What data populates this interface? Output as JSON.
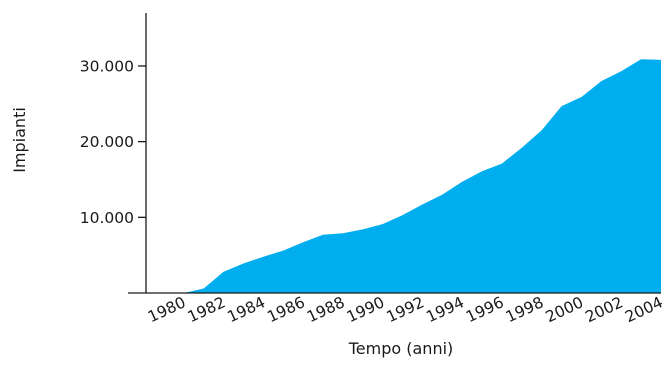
{
  "chart_data": {
    "type": "area",
    "xlabel": "Tempo (anni)",
    "ylabel": "Impianti",
    "x": [
      1980,
      1981,
      1982,
      1983,
      1984,
      1985,
      1986,
      1987,
      1988,
      1989,
      1990,
      1991,
      1992,
      1993,
      1994,
      1995,
      1996,
      1997,
      1998,
      1999,
      2000,
      2001,
      2002,
      2003,
      2004
    ],
    "series": [
      {
        "values": [
          0,
          600,
          2800,
          3900,
          4800,
          5600,
          6700,
          7700,
          7900,
          8400,
          9100,
          10300,
          11700,
          13000,
          14700,
          16100,
          17100,
          19200,
          21500,
          24700,
          25900,
          28000,
          29300,
          30900,
          30800
        ]
      }
    ],
    "x_tick_labels": [
      "1980",
      "1982",
      "1984",
      "1986",
      "1988",
      "1990",
      "1992",
      "1994",
      "1996",
      "1998",
      "2000",
      "2002",
      "2004"
    ],
    "y_tick_labels": [
      "10.000",
      "20.000",
      "30.000"
    ],
    "y_ticks": [
      10000,
      20000,
      30000
    ],
    "xlim": [
      1978.1,
      2004
    ],
    "ylim": [
      0,
      37000
    ],
    "grid": false,
    "legend": "none",
    "colors": {
      "area": "#00aeef",
      "axis": "#1a1a1a"
    }
  }
}
